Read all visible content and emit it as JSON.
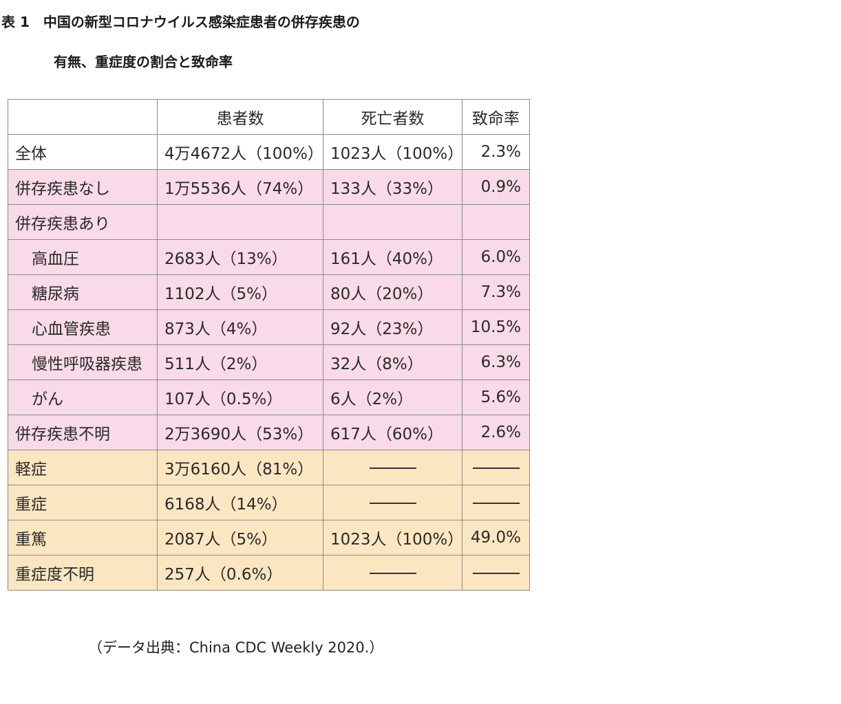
{
  "title_line1": "表 1　中国の新型コロナウイルス感染症患者の併存疾患の",
  "title_line2": "有無、重症度の割合と致命率",
  "headers": [
    "",
    "患者数",
    "死亡者数",
    "致命率"
  ],
  "rows": [
    {
      "label": "全体",
      "patients": "4万4672人（100%）",
      "deaths": "1023人（100%）",
      "rate": "2.3%"
    },
    {
      "label": "併存疾患なし",
      "patients": "1万5536人（74%）",
      "deaths": "133人（33%）",
      "rate": "0.9%"
    },
    {
      "label": "併存疾患あり",
      "patients": "",
      "deaths": "",
      "rate": ""
    },
    {
      "label": "高血圧",
      "patients": "2683人（13%）",
      "deaths": "161人（40%）",
      "rate": "6.0%"
    },
    {
      "label": "糖尿病",
      "patients": "1102人（5%）",
      "deaths": "80人（20%）",
      "rate": "7.3%"
    },
    {
      "label": "心血管疾患",
      "patients": "873人（4%）",
      "deaths": "92人（23%）",
      "rate": "10.5%"
    },
    {
      "label": "慢性呼吸器疾患",
      "patients": "511人（2%）",
      "deaths": "32人（8%）",
      "rate": "6.3%"
    },
    {
      "label": "がん",
      "patients": "107人（0.5%）",
      "deaths": "6人（2%）",
      "rate": "5.6%"
    },
    {
      "label": "併存疾患不明",
      "patients": "2万3690人（53%）",
      "deaths": "617人（60%）",
      "rate": "2.6%"
    },
    {
      "label": "軽症",
      "patients": "3万6160人（81%）",
      "deaths": "",
      "rate": ""
    },
    {
      "label": "重症",
      "patients": "6168人（14%）",
      "deaths": "",
      "rate": ""
    },
    {
      "label": "重篤",
      "patients": "2087人（5%）",
      "deaths": "1023人（100%）",
      "rate": "49.0%"
    },
    {
      "label": "重症度不明",
      "patients": "257人（0.6%）",
      "deaths": "",
      "rate": ""
    }
  ],
  "source": "（データ出典：China CDC Weekly 2020.）",
  "colors": {
    "pink_rows": "#f8dae8",
    "tan_rows": "#fbe6c2",
    "border": "#8a8a8a"
  }
}
